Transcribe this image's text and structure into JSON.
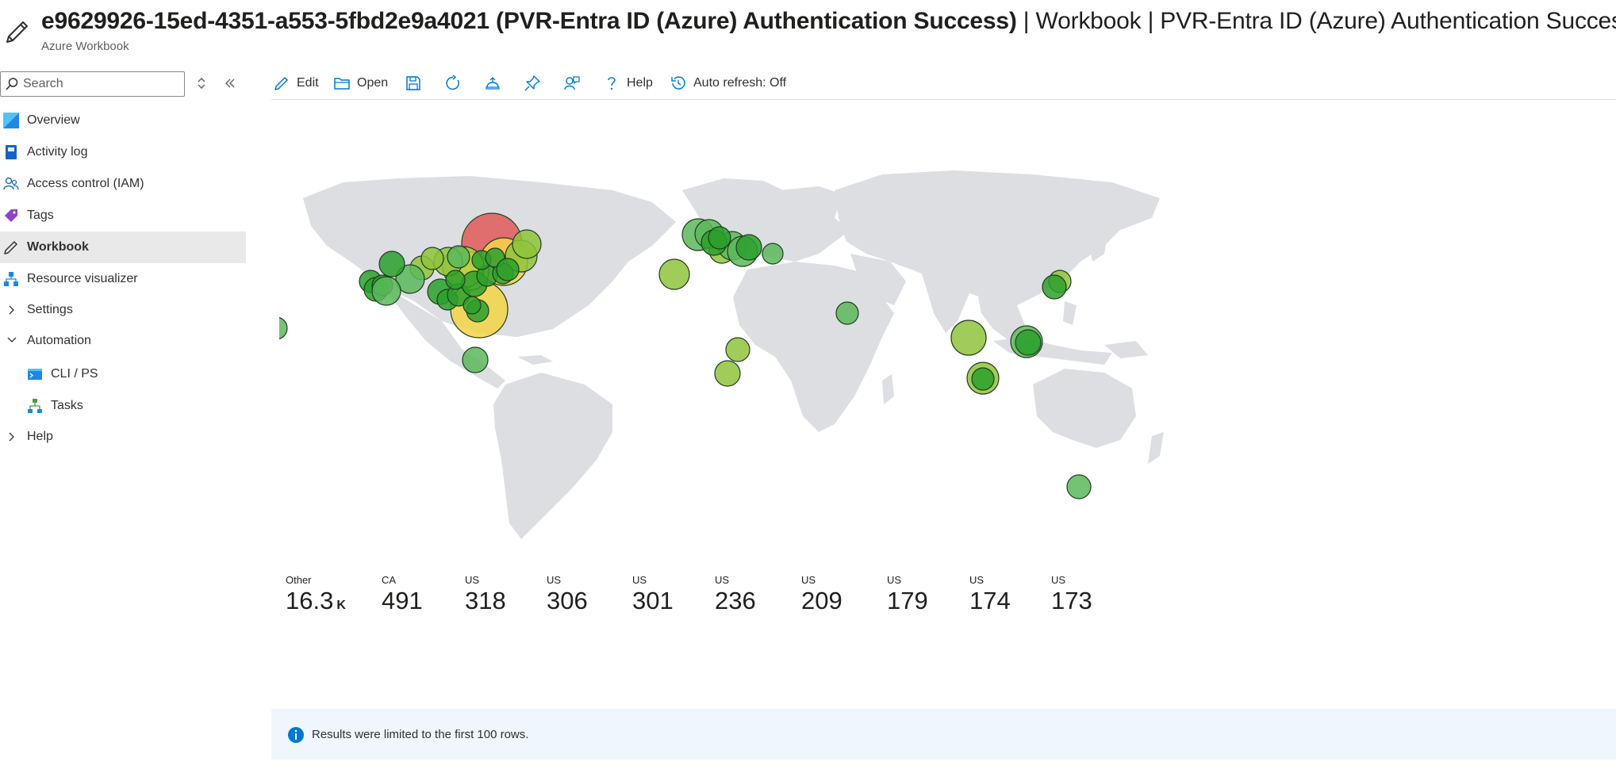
{
  "header": {
    "title_bold": "e9629926-15ed-4351-a553-5fbd2e9a4021 (PVR-Entra ID (Azure) Authentication Success)",
    "title_rest": " | Workbook | PVR-Entra ID (Azure) Authentication Success",
    "subtitle": "Azure Workbook"
  },
  "sidebar": {
    "search_placeholder": "Search",
    "items": [
      {
        "label": "Overview"
      },
      {
        "label": "Activity log"
      },
      {
        "label": "Access control (IAM)"
      },
      {
        "label": "Tags"
      },
      {
        "label": "Workbook"
      },
      {
        "label": "Resource visualizer"
      },
      {
        "label": "Settings"
      },
      {
        "label": "Automation"
      },
      {
        "label": "CLI / PS"
      },
      {
        "label": "Tasks"
      },
      {
        "label": "Help"
      }
    ]
  },
  "toolbar": {
    "edit": "Edit",
    "open": "Open",
    "help": "Help",
    "auto_refresh": "Auto refresh: Off"
  },
  "tiles": [
    {
      "cc": "Other",
      "value": "16.3",
      "unit": "K"
    },
    {
      "cc": "CA",
      "value": "491",
      "unit": ""
    },
    {
      "cc": "US",
      "value": "318",
      "unit": ""
    },
    {
      "cc": "US",
      "value": "306",
      "unit": ""
    },
    {
      "cc": "US",
      "value": "301",
      "unit": ""
    },
    {
      "cc": "US",
      "value": "236",
      "unit": ""
    },
    {
      "cc": "US",
      "value": "209",
      "unit": ""
    },
    {
      "cc": "US",
      "value": "179",
      "unit": ""
    },
    {
      "cc": "US",
      "value": "174",
      "unit": ""
    },
    {
      "cc": "US",
      "value": "173",
      "unit": ""
    }
  ],
  "info": {
    "message": "Results were limited to the first 100 rows."
  },
  "colors": {
    "accent": "#0078d4",
    "map_land": "#dcdee2",
    "bubble_green": "#2ca02c",
    "bubble_lightgreen": "#8fc43c",
    "bubble_yellow": "#f5d547",
    "bubble_red": "#e05b5b"
  }
}
